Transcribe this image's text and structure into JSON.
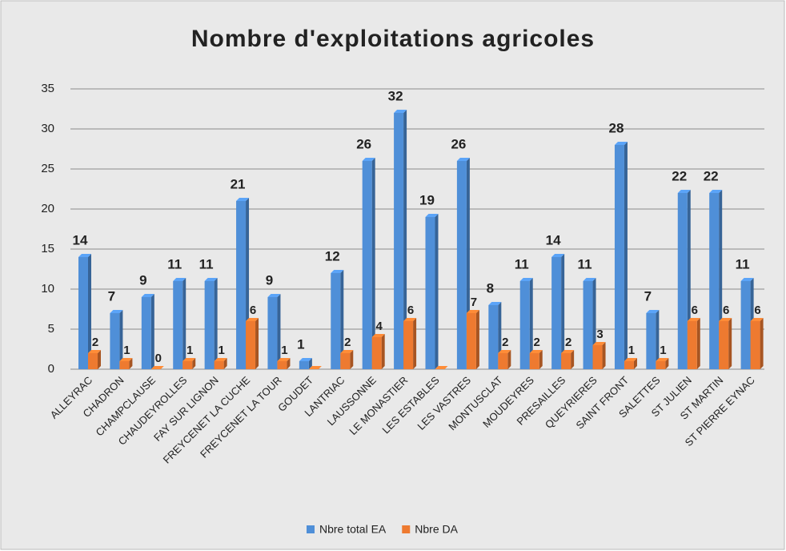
{
  "chart_data": {
    "type": "bar",
    "title": "Nombre d'exploitations agricoles",
    "categories": [
      "ALLEYRAC",
      "CHADRON",
      "CHAMPCLAUSE",
      "CHAUDEYROLLES",
      "FAY SUR LIGNON",
      "FREYCENET LA CUCHE",
      "FREYCENET LA TOUR",
      "GOUDET",
      "LANTRIAC",
      "LAUSSONNE",
      "LE MONASTIER",
      "LES ESTABLES",
      "LES VASTRES",
      "MONTUSCLAT",
      "MOUDEYRES",
      "PRESAILLES",
      "QUEYRIERES",
      "SAINT FRONT",
      "SALETTES",
      "ST JULIEN",
      "ST MARTIN",
      "ST PIERRE EYNAC"
    ],
    "series": [
      {
        "name": "Nbre total EA",
        "color": "#4f8fd8",
        "values": [
          14,
          7,
          9,
          11,
          11,
          21,
          9,
          1,
          12,
          26,
          32,
          19,
          26,
          8,
          11,
          14,
          11,
          28,
          7,
          22,
          22,
          11
        ]
      },
      {
        "name": "Nbre DA",
        "color": "#ee7a30",
        "values": [
          2,
          1,
          0,
          1,
          1,
          6,
          1,
          0,
          2,
          4,
          6,
          0,
          7,
          2,
          2,
          2,
          3,
          1,
          1,
          6,
          6,
          6
        ],
        "value_labels": [
          "2",
          "1",
          "0",
          "1",
          "1",
          "6",
          "1",
          null,
          "2",
          "4",
          "6",
          null,
          "7",
          "2",
          "2",
          "2",
          "3",
          "1",
          "1",
          "6",
          "6",
          "6"
        ]
      }
    ],
    "ylim": [
      0,
      35
    ],
    "yticks": [
      0,
      5,
      10,
      15,
      20,
      25,
      30,
      35
    ],
    "grid": true,
    "legend": "bottom"
  }
}
